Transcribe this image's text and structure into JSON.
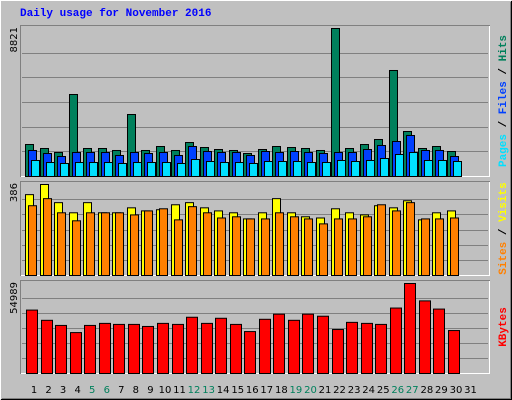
{
  "chart_data": [
    {
      "type": "bar",
      "title": "Daily usage for November 2016",
      "ylim": [
        0,
        8821
      ],
      "yticks": [
        8821
      ],
      "legend_separator": " / ",
      "series": [
        {
          "name": "Hits",
          "color": "#00805c",
          "values": [
            1907,
            1669,
            1430,
            4887,
            1669,
            1669,
            1550,
            3695,
            1550,
            1788,
            1550,
            2026,
            1728,
            1609,
            1550,
            1371,
            1609,
            1788,
            1728,
            1669,
            1550,
            8821,
            1669,
            1907,
            2205,
            6318,
            2682,
            1669,
            1788,
            1490,
            null
          ]
        },
        {
          "name": "Files",
          "color": "#0040ff",
          "values": [
            1550,
            1371,
            1192,
            1430,
            1430,
            1430,
            1252,
            1430,
            1371,
            1430,
            1252,
            1788,
            1490,
            1430,
            1430,
            1252,
            1490,
            1430,
            1490,
            1430,
            1371,
            1430,
            1430,
            1609,
            1848,
            2086,
            2444,
            1550,
            1550,
            1192,
            null
          ]
        },
        {
          "name": "Pages",
          "color": "#00e0ff",
          "values": [
            954,
            834,
            775,
            834,
            834,
            834,
            775,
            834,
            834,
            834,
            775,
            1013,
            894,
            834,
            834,
            775,
            894,
            894,
            894,
            834,
            834,
            954,
            894,
            954,
            1073,
            1311,
            1430,
            954,
            954,
            894,
            null
          ]
        }
      ]
    },
    {
      "type": "bar",
      "ylim": [
        0,
        386
      ],
      "yticks": [
        386
      ],
      "legend_separator": " / ",
      "series": [
        {
          "name": "Visits",
          "color": "#ffff00",
          "values": [
            343,
            386,
            309,
            266,
            309,
            266,
            266,
            287,
            274,
            279,
            300,
            309,
            287,
            274,
            266,
            240,
            266,
            326,
            266,
            249,
            244,
            283,
            266,
            257,
            296,
            287,
            317,
            236,
            266,
            274,
            null
          ]
        },
        {
          "name": "Sites",
          "color": "#ff8000",
          "values": [
            296,
            326,
            266,
            232,
            266,
            266,
            266,
            257,
            274,
            283,
            236,
            292,
            266,
            244,
            249,
            240,
            240,
            266,
            249,
            240,
            219,
            240,
            240,
            249,
            300,
            274,
            309,
            240,
            240,
            244,
            null
          ]
        }
      ]
    },
    {
      "type": "bar",
      "ylim": [
        0,
        54989
      ],
      "yticks": [
        54989
      ],
      "legend_separator": " / ",
      "categories": [
        1,
        2,
        3,
        4,
        5,
        6,
        7,
        8,
        9,
        10,
        11,
        12,
        13,
        14,
        15,
        16,
        17,
        18,
        19,
        20,
        21,
        22,
        23,
        24,
        25,
        26,
        27,
        28,
        29,
        30,
        31
      ],
      "category_colors": [
        "#000000",
        "#000000",
        "#000000",
        "#000000",
        "#00805c",
        "#00805c",
        "#000000",
        "#000000",
        "#000000",
        "#000000",
        "#000000",
        "#00805c",
        "#00805c",
        "#000000",
        "#000000",
        "#000000",
        "#000000",
        "#000000",
        "#00805c",
        "#00805c",
        "#000000",
        "#000000",
        "#000000",
        "#000000",
        "#000000",
        "#00805c",
        "#00805c",
        "#000000",
        "#000000",
        "#000000",
        "#000000"
      ],
      "series": [
        {
          "name": "KBytes",
          "color": "#ff0000",
          "values": [
            38743,
            32494,
            29369,
            24995,
            29369,
            30619,
            29994,
            29994,
            28744,
            30619,
            29994,
            34369,
            30619,
            33744,
            29994,
            25620,
            33119,
            36243,
            32494,
            36243,
            34994,
            26870,
            31244,
            30619,
            29994,
            39992,
            54989,
            44367,
            39367,
            26245,
            null
          ]
        }
      ]
    }
  ]
}
